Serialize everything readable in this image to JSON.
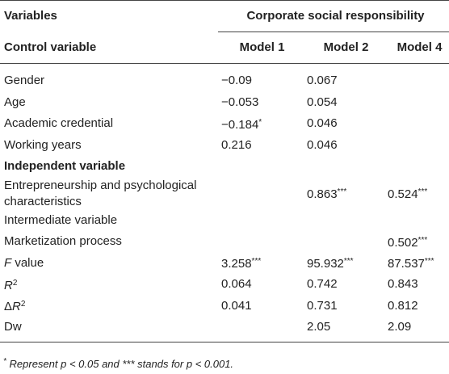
{
  "header": {
    "stub": "Variables",
    "spanner": "Corporate social responsibility",
    "stub2": "Control variable",
    "columns": [
      "Model 1",
      "Model 2",
      "Model 4"
    ]
  },
  "rows": [
    {
      "label": [
        {
          "text": "Gender"
        }
      ],
      "cells": [
        [
          {
            "text": "−0.09"
          }
        ],
        [
          {
            "text": "0.067"
          }
        ],
        []
      ]
    },
    {
      "label": [
        {
          "text": "Age"
        }
      ],
      "cells": [
        [
          {
            "text": "−0.053"
          }
        ],
        [
          {
            "text": "0.054"
          }
        ],
        []
      ]
    },
    {
      "label": [
        {
          "text": "Academic credential"
        }
      ],
      "cells": [
        [
          {
            "text": "−0.184"
          },
          {
            "text": "*",
            "style": "sup"
          }
        ],
        [
          {
            "text": "0.046"
          }
        ],
        []
      ]
    },
    {
      "label": [
        {
          "text": "Working years"
        }
      ],
      "cells": [
        [
          {
            "text": "0.216"
          }
        ],
        [
          {
            "text": "0.046"
          }
        ],
        []
      ]
    },
    {
      "label": [
        {
          "text": "Independent variable",
          "style": "bold"
        }
      ],
      "cells": [
        [],
        [],
        []
      ]
    },
    {
      "label": [
        {
          "text": "Entrepreneurship and psychological characteristics"
        }
      ],
      "cells": [
        [],
        [
          {
            "text": "0.863"
          },
          {
            "text": "***",
            "style": "sup"
          }
        ],
        [
          {
            "text": "0.524"
          },
          {
            "text": "***",
            "style": "sup"
          }
        ]
      ]
    },
    {
      "label": [
        {
          "text": "Intermediate variable"
        }
      ],
      "cells": [
        [],
        [],
        []
      ]
    },
    {
      "label": [
        {
          "text": "Marketization process"
        }
      ],
      "cells": [
        [],
        [],
        [
          {
            "text": "0.502"
          },
          {
            "text": "***",
            "style": "sup"
          }
        ]
      ]
    },
    {
      "label": [
        {
          "text": "F",
          "style": "italic"
        },
        {
          "text": " value"
        }
      ],
      "cells": [
        [
          {
            "text": "3.258"
          },
          {
            "text": "***",
            "style": "sup"
          }
        ],
        [
          {
            "text": "95.932"
          },
          {
            "text": "***",
            "style": "sup"
          }
        ],
        [
          {
            "text": "87.537"
          },
          {
            "text": "***",
            "style": "sup"
          }
        ]
      ]
    },
    {
      "label": [
        {
          "text": "R",
          "style": "italic"
        },
        {
          "text": "2",
          "style": "sup"
        }
      ],
      "cells": [
        [
          {
            "text": "0.064"
          }
        ],
        [
          {
            "text": "0.742"
          }
        ],
        [
          {
            "text": "0.843"
          }
        ]
      ]
    },
    {
      "label": [
        {
          "text": "Δ"
        },
        {
          "text": "R",
          "style": "italic"
        },
        {
          "text": "2",
          "style": "sup"
        }
      ],
      "cells": [
        [
          {
            "text": "0.041"
          }
        ],
        [
          {
            "text": "0.731"
          }
        ],
        [
          {
            "text": "0.812"
          }
        ]
      ]
    },
    {
      "label": [
        {
          "text": "Dw"
        }
      ],
      "cells": [
        [],
        [
          {
            "text": "2.05"
          }
        ],
        [
          {
            "text": "2.09"
          }
        ]
      ]
    }
  ],
  "footnote": [
    {
      "text": "*",
      "style": "sup"
    },
    {
      "text": " Represent p < 0.05 and *** stands for p < 0.001."
    }
  ]
}
